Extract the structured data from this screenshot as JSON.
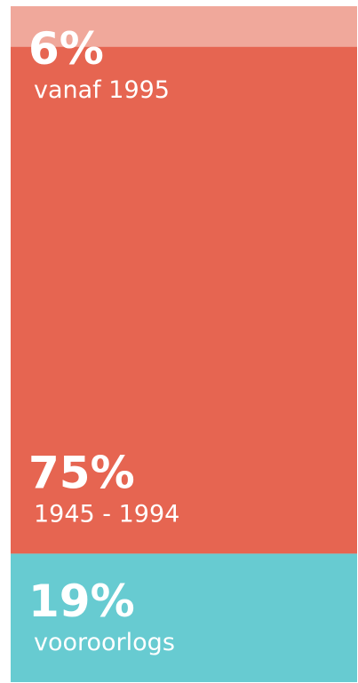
{
  "chart_data": {
    "type": "bar",
    "stacked": true,
    "ylim": [
      0,
      100
    ],
    "series": [
      {
        "name": "vanaf 1995",
        "color": "#f0a89b",
        "values": [
          6
        ],
        "value_labels": [
          "6%"
        ]
      },
      {
        "name": "1945 - 1994",
        "color": "#e66551",
        "values": [
          75
        ],
        "value_labels": [
          "75%"
        ]
      },
      {
        "name": "vooroorlogs",
        "color": "#67cbd1",
        "values": [
          19
        ],
        "value_labels": [
          "19%"
        ]
      }
    ]
  }
}
